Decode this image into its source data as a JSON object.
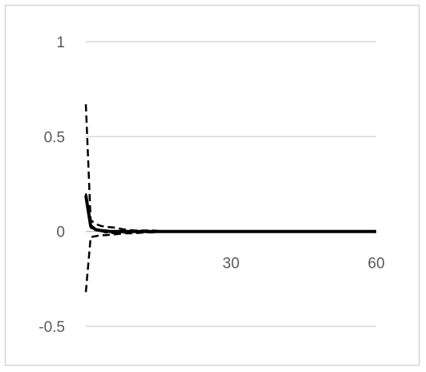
{
  "chart_data": {
    "type": "line",
    "title": "",
    "xlabel": "",
    "ylabel": "",
    "xlim": [
      0,
      60
    ],
    "ylim": [
      -0.5,
      1
    ],
    "x_ticks": [
      30,
      60
    ],
    "y_ticks": [
      1,
      0.5,
      0,
      -0.5
    ],
    "y_tick_labels": [
      "1",
      "0.5",
      "0",
      "-0.5"
    ],
    "x_tick_labels": [
      "30",
      "60"
    ],
    "grid": true,
    "legend": "none",
    "colors": {
      "series": "#000000",
      "grid": "#d9d9d9",
      "axis": "#bfbfbf",
      "text": "#595959"
    },
    "series": [
      {
        "style": "solid",
        "x": [
          0,
          1,
          2,
          3,
          5,
          10,
          20,
          30,
          40,
          50,
          60
        ],
        "y": [
          0.19,
          0.03,
          0.01,
          0.005,
          0,
          0,
          0,
          0,
          0,
          0,
          0
        ]
      },
      {
        "style": "dashed",
        "x": [
          0,
          1,
          2,
          3,
          4,
          6,
          8,
          10,
          12,
          14,
          16
        ],
        "y": [
          0.67,
          0.06,
          0.04,
          0.03,
          0.025,
          0.02,
          0.01,
          0.005,
          0.005,
          0.005,
          0
        ]
      },
      {
        "style": "dashed",
        "x": [
          0,
          1,
          2,
          3,
          4,
          6,
          8,
          10,
          12,
          14,
          16
        ],
        "y": [
          -0.32,
          -0.03,
          -0.025,
          -0.02,
          -0.02,
          -0.015,
          -0.01,
          -0.01,
          -0.005,
          -0.005,
          0
        ]
      },
      {
        "style": "dashed",
        "x": [
          0,
          1,
          2,
          3,
          4,
          6,
          8,
          10
        ],
        "y": [
          0.2,
          0.02,
          0.01,
          0.005,
          -0.005,
          -0.01,
          -0.005,
          0
        ]
      }
    ]
  }
}
